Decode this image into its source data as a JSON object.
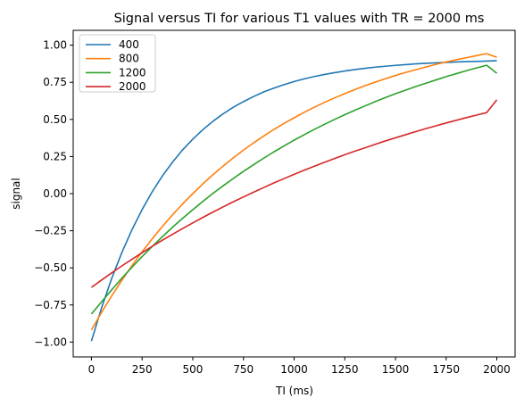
{
  "chart_data": {
    "type": "line",
    "title": "Signal versus TI for various T1 values with TR = 2000 ms",
    "xlabel": "TI (ms)",
    "ylabel": "signal",
    "xlim": [
      -90,
      2090
    ],
    "ylim": [
      -1.1,
      1.1
    ],
    "xticks": [
      0,
      250,
      500,
      750,
      1000,
      1250,
      1500,
      1750,
      2000
    ],
    "yticks": [
      -1.0,
      -0.75,
      -0.5,
      -0.25,
      0.0,
      0.25,
      0.5,
      0.75,
      1.0
    ],
    "xtick_labels": [
      "0",
      "250",
      "500",
      "750",
      "1000",
      "1250",
      "1500",
      "1750",
      "2000"
    ],
    "ytick_labels": [
      "−1.00",
      "−0.75",
      "−0.50",
      "−0.25",
      "0.00",
      "0.25",
      "0.50",
      "0.75",
      "1.00"
    ],
    "grid": false,
    "legend_position": "top-left",
    "x": [
      0,
      50,
      100,
      150,
      200,
      250,
      300,
      350,
      400,
      450,
      500,
      550,
      600,
      650,
      700,
      750,
      800,
      850,
      900,
      950,
      1000,
      1050,
      1100,
      1150,
      1200,
      1250,
      1300,
      1350,
      1400,
      1450,
      1500,
      1550,
      1600,
      1650,
      1700,
      1750,
      1800,
      1850,
      1900,
      1950,
      2000
    ],
    "series": [
      {
        "name": "400",
        "color": "#1f77b4",
        "values": [
          -0.993,
          -0.769,
          -0.571,
          -0.397,
          -0.243,
          -0.107,
          0.013,
          0.119,
          0.212,
          0.295,
          0.367,
          0.431,
          0.488,
          0.538,
          0.582,
          0.62,
          0.654,
          0.685,
          0.711,
          0.734,
          0.755,
          0.773,
          0.789,
          0.803,
          0.815,
          0.826,
          0.836,
          0.844,
          0.852,
          0.858,
          0.864,
          0.869,
          0.874,
          0.878,
          0.881,
          0.884,
          0.887,
          0.889,
          0.891,
          0.893,
          0.895
        ]
      },
      {
        "name": "800",
        "color": "#ff7f0e",
        "values": [
          -0.918,
          -0.8,
          -0.689,
          -0.584,
          -0.485,
          -0.392,
          -0.304,
          -0.221,
          -0.143,
          -0.069,
          0.0,
          0.066,
          0.128,
          0.186,
          0.241,
          0.293,
          0.342,
          0.388,
          0.432,
          0.473,
          0.511,
          0.548,
          0.582,
          0.615,
          0.645,
          0.674,
          0.701,
          0.727,
          0.751,
          0.774,
          0.796,
          0.816,
          0.835,
          0.853,
          0.871,
          0.887,
          0.902,
          0.916,
          0.93,
          0.943,
          0.918
        ]
      },
      {
        "name": "1200",
        "color": "#2ca02c",
        "values": [
          -0.811,
          -0.729,
          -0.648,
          -0.57,
          -0.496,
          -0.424,
          -0.356,
          -0.29,
          -0.227,
          -0.166,
          -0.108,
          -0.052,
          0.002,
          0.053,
          0.102,
          0.15,
          0.195,
          0.239,
          0.281,
          0.321,
          0.36,
          0.397,
          0.433,
          0.467,
          0.5,
          0.532,
          0.562,
          0.591,
          0.62,
          0.647,
          0.673,
          0.697,
          0.721,
          0.744,
          0.766,
          0.788,
          0.808,
          0.828,
          0.847,
          0.865,
          0.811
        ]
      },
      {
        "name": "2000",
        "color": "#d62728",
        "values": [
          -0.632,
          -0.582,
          -0.534,
          -0.487,
          -0.442,
          -0.398,
          -0.355,
          -0.314,
          -0.274,
          -0.235,
          -0.197,
          -0.16,
          -0.124,
          -0.089,
          -0.055,
          -0.022,
          0.01,
          0.041,
          0.072,
          0.101,
          0.13,
          0.158,
          0.185,
          0.211,
          0.237,
          0.262,
          0.286,
          0.309,
          0.332,
          0.355,
          0.376,
          0.397,
          0.418,
          0.438,
          0.457,
          0.476,
          0.494,
          0.512,
          0.529,
          0.546,
          0.632
        ]
      }
    ]
  }
}
